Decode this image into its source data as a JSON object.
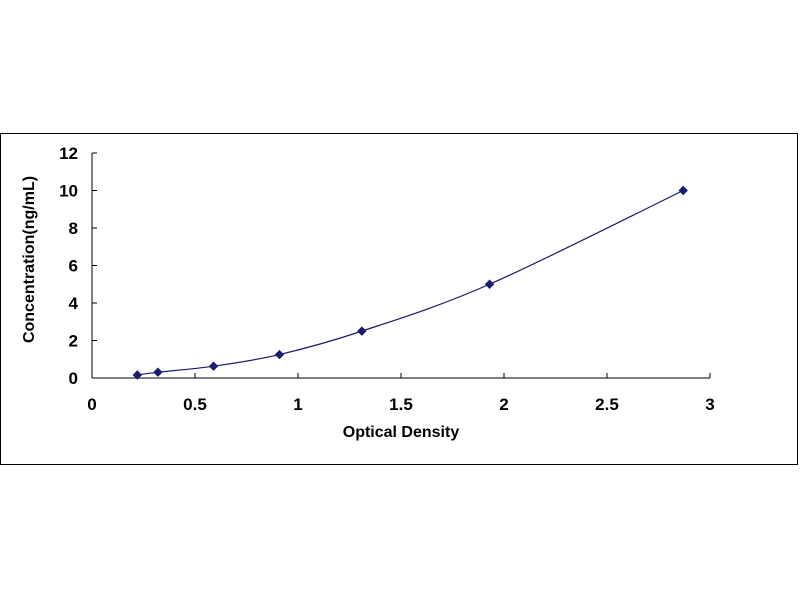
{
  "chart_data": {
    "type": "scatter",
    "xlabel": "Optical Density",
    "ylabel": "Concentration(ng/mL)",
    "xlim": [
      0,
      3
    ],
    "ylim": [
      0,
      12
    ],
    "x_ticks": [
      "0",
      "0.5",
      "1",
      "1.5",
      "2",
      "2.5",
      "3"
    ],
    "y_ticks": [
      "0",
      "2",
      "4",
      "6",
      "8",
      "10",
      "12"
    ],
    "grid": false,
    "legend": "none",
    "series": [
      {
        "x": [
          0.22,
          0.32,
          0.59,
          0.91,
          1.31,
          1.93,
          2.87
        ],
        "y": [
          0.16,
          0.31,
          0.63,
          1.25,
          2.5,
          5,
          10
        ],
        "marker": "diamond",
        "fit_line": "smooth"
      }
    ],
    "colors": {
      "marker": "#1a1a6e",
      "line": "#1a1a6e",
      "axis": "#000000"
    }
  }
}
